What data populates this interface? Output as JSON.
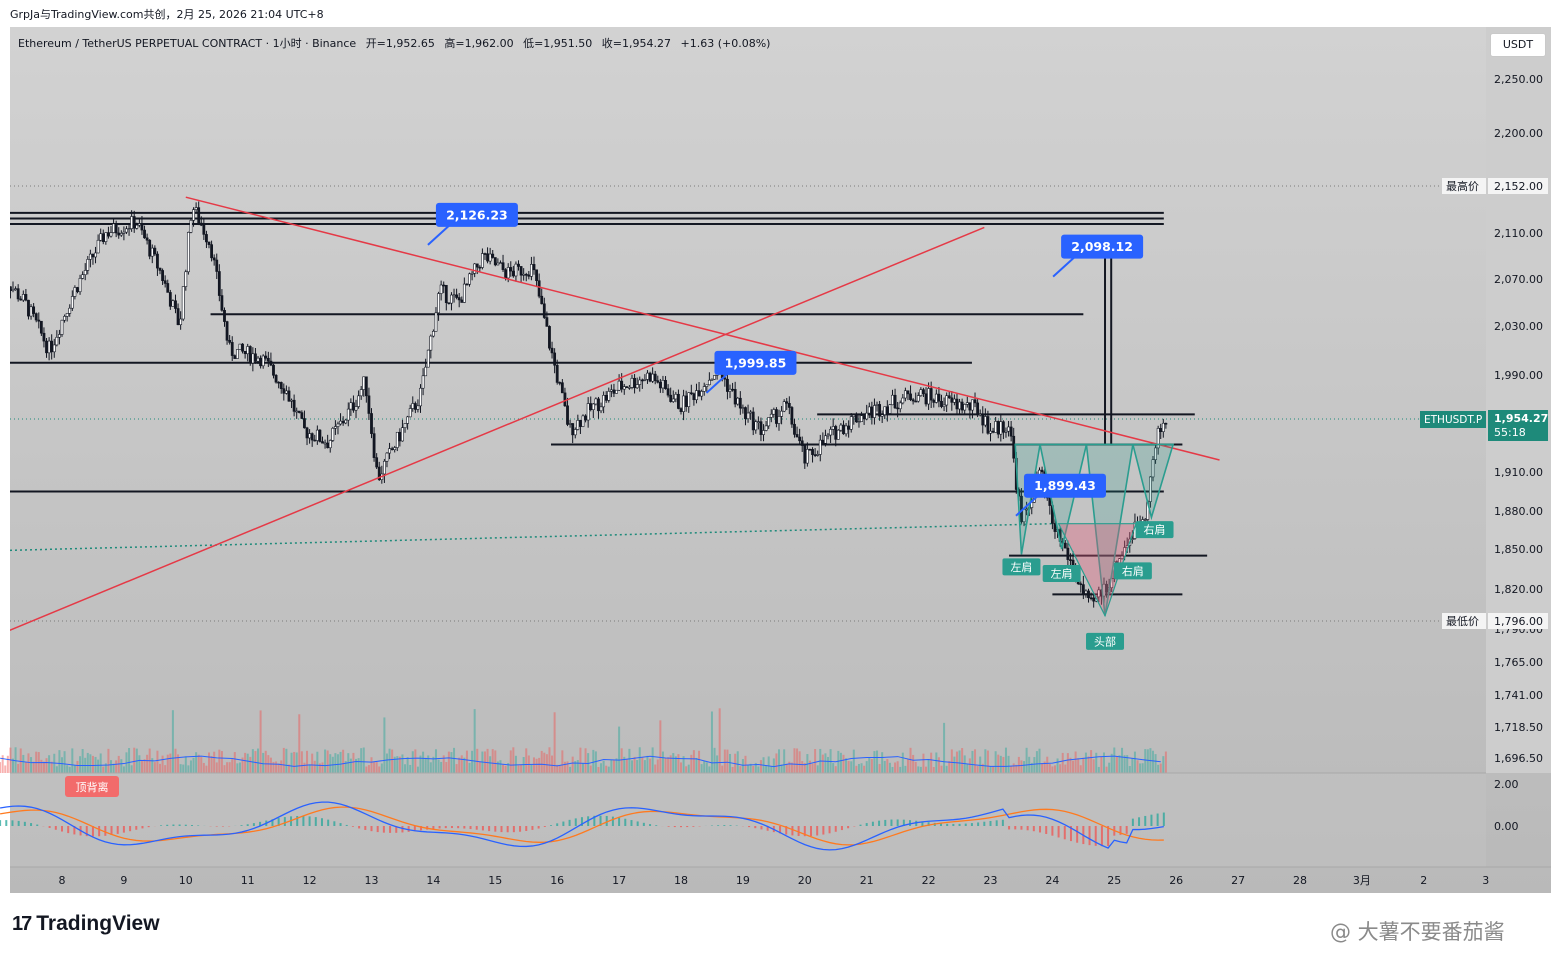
{
  "header": {
    "source_line": "GrpJa与TradingView.com共创，2月 25, 2026 21:04 UTC+8"
  },
  "legend": {
    "symbol": "Ethereum / TetherUS PERPETUAL CONTRACT · 1小时 · Binance",
    "open": "开=1,952.65",
    "high": "高=1,962.00",
    "low": "低=1,951.50",
    "close": "收=1,954.27",
    "change": "+1.63 (+0.08%)"
  },
  "unit_button": "USDT",
  "colors": {
    "up": "#ffffff",
    "down": "#131722",
    "trendline": "#e53946",
    "callout": "#2962ff",
    "shape_green": "#2a9d8f",
    "badge_red": "#f26b6b",
    "price_tag": "#1e8a7a",
    "macd": "#2962ff",
    "signal": "#ff7a1f"
  },
  "chart_data": {
    "type": "candlestick",
    "x_ticks": [
      "8",
      "9",
      "10",
      "11",
      "12",
      "13",
      "14",
      "15",
      "16",
      "17",
      "18",
      "19",
      "20",
      "21",
      "22",
      "23",
      "24",
      "25",
      "26",
      "27",
      "28",
      "3月",
      "2",
      "3"
    ],
    "y_ticks": [
      "2,250.00",
      "2,200.00",
      "2,110.00",
      "2,070.00",
      "2,030.00",
      "1,990.00",
      "1,910.00",
      "1,880.00",
      "1,850.00",
      "1,820.00",
      "1,790.00",
      "1,765.00",
      "1,741.00",
      "1,718.50",
      "1,696.50"
    ],
    "macd_ticks": [
      "2.00",
      "0.00"
    ],
    "ylim": [
      1690,
      2265
    ],
    "callouts": [
      {
        "label": "2,126.23",
        "day": 14.8,
        "price": 2126.23
      },
      {
        "label": "2,098.12",
        "day": 24.9,
        "price": 2098.12
      },
      {
        "label": "1,999.85",
        "day": 19.3,
        "price": 1999.85
      },
      {
        "label": "1,899.43",
        "day": 24.3,
        "price": 1899.43
      }
    ],
    "markers": {
      "highest_label": "最高价",
      "highest_value": "2,152.00",
      "lowest_label": "最低价",
      "lowest_value": "1,796.00",
      "current_symbol": "ETHUSDT.P",
      "current_price": "1,954.27",
      "countdown": "55:18",
      "current_value": 1954.27
    },
    "pattern_labels": {
      "left_shoulder_1": "左肩",
      "left_shoulder_2": "左肩",
      "right_shoulder_1": "右肩",
      "right_shoulder_2": "右肩",
      "head": "头部"
    },
    "divergence_label": "顶背离",
    "levels": [
      {
        "from": 7.0,
        "to": 25.8,
        "price": 2128
      },
      {
        "from": 7.0,
        "to": 25.8,
        "price": 2123
      },
      {
        "from": 7.0,
        "to": 25.8,
        "price": 2118
      },
      {
        "from": 10.4,
        "to": 24.5,
        "price": 2040
      },
      {
        "from": 7.0,
        "to": 22.7,
        "price": 2000
      },
      {
        "from": 20.2,
        "to": 26.3,
        "price": 1958
      },
      {
        "from": 15.9,
        "to": 26.1,
        "price": 1933
      },
      {
        "from": 7.0,
        "to": 25.8,
        "price": 1895
      },
      {
        "from": 23.3,
        "to": 26.5,
        "price": 1845
      },
      {
        "from": 24.0,
        "to": 26.1,
        "price": 1816
      }
    ],
    "trendlines": [
      {
        "d1": 10.0,
        "p1": 2142,
        "d2": 26.7,
        "p2": 1920
      },
      {
        "d1": 7.0,
        "p1": 1786,
        "d2": 22.9,
        "p2": 2115
      }
    ]
  },
  "branding": {
    "logo": "17",
    "name": "TradingView",
    "watermark": "@ 大薯不要番茄酱"
  }
}
